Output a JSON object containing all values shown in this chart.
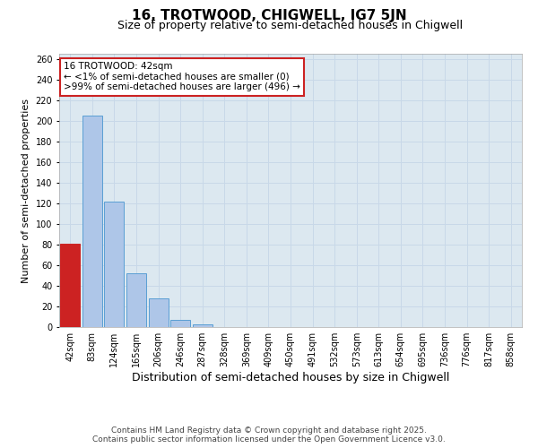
{
  "title1": "16, TROTWOOD, CHIGWELL, IG7 5JN",
  "title2": "Size of property relative to semi-detached houses in Chigwell",
  "xlabel": "Distribution of semi-detached houses by size in Chigwell",
  "ylabel": "Number of semi-detached properties",
  "categories": [
    "42sqm",
    "83sqm",
    "124sqm",
    "165sqm",
    "206sqm",
    "246sqm",
    "287sqm",
    "328sqm",
    "369sqm",
    "409sqm",
    "450sqm",
    "491sqm",
    "532sqm",
    "573sqm",
    "613sqm",
    "654sqm",
    "695sqm",
    "736sqm",
    "776sqm",
    "817sqm",
    "858sqm"
  ],
  "values": [
    81,
    205,
    122,
    52,
    28,
    7,
    3,
    0,
    0,
    0,
    0,
    0,
    0,
    0,
    0,
    0,
    0,
    0,
    0,
    0,
    0
  ],
  "bar_color": "#aec6e8",
  "bar_edge_color": "#5a9fd4",
  "highlight_bar_index": 0,
  "highlight_bar_color": "#cc2222",
  "highlight_bar_edge_color": "#cc2222",
  "annotation_text": "16 TROTWOOD: 42sqm\n← <1% of semi-detached houses are smaller (0)\n>99% of semi-detached houses are larger (496) →",
  "annotation_box_color": "#ffffff",
  "annotation_box_edge_color": "#cc2222",
  "ylim": [
    0,
    265
  ],
  "yticks": [
    0,
    20,
    40,
    60,
    80,
    100,
    120,
    140,
    160,
    180,
    200,
    220,
    240,
    260
  ],
  "grid_color": "#c8d8e8",
  "background_color": "#dce8f0",
  "footer_text": "Contains HM Land Registry data © Crown copyright and database right 2025.\nContains public sector information licensed under the Open Government Licence v3.0.",
  "title1_fontsize": 11,
  "title2_fontsize": 9,
  "xlabel_fontsize": 9,
  "ylabel_fontsize": 8,
  "tick_fontsize": 7,
  "annotation_fontsize": 7.5,
  "footer_fontsize": 6.5
}
